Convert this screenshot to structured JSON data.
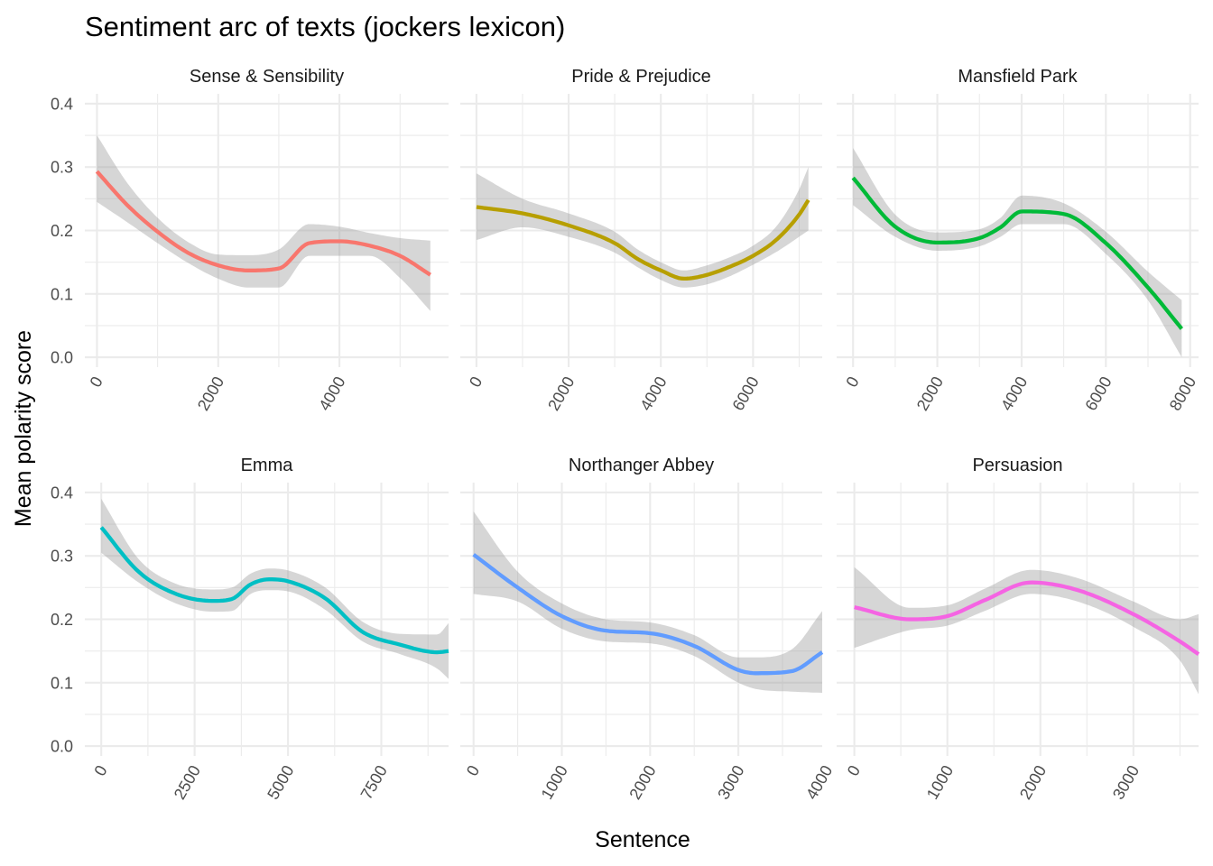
{
  "chart_data": {
    "type": "line",
    "title": "Sentiment arc of texts (jockers lexicon)",
    "xlabel": "Sentence",
    "ylabel": "Mean polarity score",
    "ylim": [
      0,
      0.4
    ],
    "y_ticks": [
      0.0,
      0.1,
      0.2,
      0.3,
      0.4
    ],
    "y_tick_labels": [
      "0.0",
      "0.1",
      "0.2",
      "0.3",
      "0.4"
    ],
    "grid": true,
    "legend": "none",
    "panels": [
      {
        "name": "Sense & Sensibility",
        "color": "#F8766D",
        "xlim": [
          -200,
          5800
        ],
        "x_ticks": [
          0,
          2000,
          4000
        ],
        "x_tick_labels": [
          "0",
          "2000",
          "4000"
        ],
        "x_minor": [
          1000,
          3000,
          5000
        ],
        "x": [
          0,
          500,
          1000,
          1500,
          2000,
          2500,
          3000,
          3500,
          4000,
          4500,
          5000,
          5500
        ],
        "y": [
          0.293,
          0.24,
          0.198,
          0.165,
          0.145,
          0.137,
          0.14,
          0.18,
          0.183,
          0.176,
          0.16,
          0.13
        ],
        "ymin": [
          0.245,
          0.213,
          0.18,
          0.149,
          0.124,
          0.11,
          0.11,
          0.16,
          0.16,
          0.16,
          0.125,
          0.073
        ],
        "ymax": [
          0.35,
          0.275,
          0.22,
          0.182,
          0.162,
          0.161,
          0.17,
          0.21,
          0.206,
          0.196,
          0.188,
          0.184
        ]
      },
      {
        "name": "Pride & Prejudice",
        "color": "#B79F00",
        "xlim": [
          -350,
          7500
        ],
        "x_ticks": [
          0,
          2000,
          4000,
          6000
        ],
        "x_tick_labels": [
          "0",
          "2000",
          "4000",
          "6000"
        ],
        "x_minor": [
          1000,
          3000,
          5000,
          7000
        ],
        "x": [
          0,
          1000,
          2000,
          3000,
          3500,
          4000,
          4500,
          5000,
          5500,
          6000,
          6500,
          7000,
          7200
        ],
        "y": [
          0.237,
          0.227,
          0.208,
          0.18,
          0.155,
          0.137,
          0.124,
          0.13,
          0.143,
          0.16,
          0.185,
          0.225,
          0.248
        ],
        "ymin": [
          0.185,
          0.205,
          0.19,
          0.165,
          0.142,
          0.122,
          0.11,
          0.115,
          0.128,
          0.146,
          0.166,
          0.19,
          0.2
        ],
        "ymax": [
          0.29,
          0.25,
          0.227,
          0.198,
          0.17,
          0.15,
          0.137,
          0.145,
          0.158,
          0.176,
          0.206,
          0.265,
          0.3
        ]
      },
      {
        "name": "Mansfield Park",
        "color": "#00BA38",
        "xlim": [
          -390,
          8200
        ],
        "x_ticks": [
          0,
          2000,
          4000,
          6000,
          8000
        ],
        "x_tick_labels": [
          "0",
          "2000",
          "4000",
          "6000",
          "8000"
        ],
        "x_minor": [
          1000,
          3000,
          5000,
          7000
        ],
        "x": [
          0,
          1000,
          2000,
          3000,
          3500,
          4000,
          5000,
          6000,
          7000,
          7800
        ],
        "y": [
          0.283,
          0.206,
          0.181,
          0.188,
          0.205,
          0.23,
          0.226,
          0.18,
          0.11,
          0.045
        ],
        "ymin": [
          0.24,
          0.19,
          0.168,
          0.175,
          0.19,
          0.21,
          0.21,
          0.163,
          0.09,
          0.0
        ],
        "ymax": [
          0.33,
          0.225,
          0.197,
          0.202,
          0.22,
          0.255,
          0.243,
          0.198,
          0.135,
          0.09
        ]
      },
      {
        "name": "Emma",
        "color": "#00BFC4",
        "xlim": [
          -440,
          9300
        ],
        "x_ticks": [
          0,
          2500,
          5000,
          7500
        ],
        "x_tick_labels": [
          "0",
          "2500",
          "5000",
          "7500"
        ],
        "x_minor": [
          1250,
          3750,
          6250,
          8750
        ],
        "x": [
          0,
          1000,
          2000,
          3000,
          3500,
          4000,
          4500,
          5000,
          6000,
          7000,
          8000,
          9000,
          9300
        ],
        "y": [
          0.345,
          0.275,
          0.24,
          0.229,
          0.232,
          0.255,
          0.263,
          0.26,
          0.233,
          0.18,
          0.16,
          0.148,
          0.15
        ],
        "ymin": [
          0.305,
          0.258,
          0.225,
          0.212,
          0.213,
          0.24,
          0.246,
          0.244,
          0.215,
          0.165,
          0.145,
          0.122,
          0.106
        ],
        "ymax": [
          0.39,
          0.295,
          0.256,
          0.247,
          0.25,
          0.272,
          0.28,
          0.277,
          0.25,
          0.196,
          0.177,
          0.176,
          0.194
        ]
      },
      {
        "name": "Northanger Abbey",
        "color": "#619CFF",
        "xlim": [
          -150,
          3950
        ],
        "x_ticks": [
          0,
          1000,
          2000,
          3000,
          4000
        ],
        "x_tick_labels": [
          "0",
          "1000",
          "2000",
          "3000",
          "4000"
        ],
        "x_minor": [
          500,
          1500,
          2500,
          3500
        ],
        "x": [
          0,
          500,
          1000,
          1500,
          2000,
          2500,
          3000,
          3200,
          3600,
          3950
        ],
        "y": [
          0.302,
          0.25,
          0.205,
          0.182,
          0.178,
          0.158,
          0.12,
          0.115,
          0.118,
          0.148
        ],
        "ymin": [
          0.24,
          0.228,
          0.185,
          0.165,
          0.162,
          0.142,
          0.1,
          0.09,
          0.086,
          0.084
        ],
        "ymax": [
          0.37,
          0.275,
          0.225,
          0.2,
          0.195,
          0.175,
          0.14,
          0.14,
          0.152,
          0.213
        ]
      },
      {
        "name": "Persuasion",
        "color": "#F564E3",
        "xlim": [
          -190,
          3700
        ],
        "x_ticks": [
          0,
          1000,
          2000,
          3000
        ],
        "x_tick_labels": [
          "0",
          "1000",
          "2000",
          "3000"
        ],
        "x_minor": [
          500,
          1500,
          2500,
          3500
        ],
        "x": [
          0,
          600,
          1000,
          1400,
          1900,
          2400,
          3000,
          3500,
          3700
        ],
        "y": [
          0.219,
          0.2,
          0.205,
          0.23,
          0.258,
          0.246,
          0.208,
          0.165,
          0.145
        ],
        "ymin": [
          0.155,
          0.183,
          0.19,
          0.213,
          0.24,
          0.228,
          0.188,
          0.135,
          0.082
        ],
        "ymax": [
          0.282,
          0.218,
          0.222,
          0.248,
          0.278,
          0.265,
          0.228,
          0.2,
          0.208
        ]
      }
    ]
  }
}
